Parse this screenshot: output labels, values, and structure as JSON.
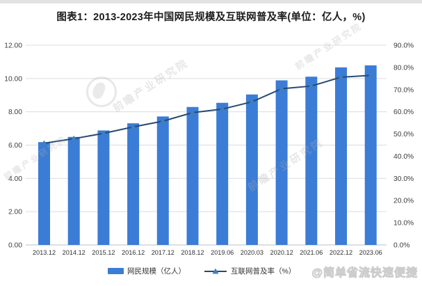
{
  "title": "图表1：2013-2023年中国网民规模及互联网普及率(单位：亿人，%)",
  "chart_data": {
    "type": "bar",
    "subtype": "combo-bar-line-dual-axis",
    "title": "图表1：2013-2023年中国网民规模及互联网普及率(单位：亿人，%)",
    "categories": [
      "2013.12",
      "2014.12",
      "2015.12",
      "2016.12",
      "2017.12",
      "2018.12",
      "2019.06",
      "2020.03",
      "2020.12",
      "2021.06",
      "2022.12",
      "2023.06"
    ],
    "series": [
      {
        "name": "网民规模（亿人）",
        "type": "bar",
        "axis": "left",
        "color": "#3B7CD6",
        "values": [
          6.18,
          6.49,
          6.88,
          7.31,
          7.72,
          8.29,
          8.54,
          9.04,
          9.89,
          10.11,
          10.67,
          10.79
        ]
      },
      {
        "name": "互联网普及率（%）",
        "type": "line",
        "axis": "right",
        "color": "#254A73",
        "marker": "triangle",
        "marker_color": "#3E7FC1",
        "values": [
          45.8,
          47.9,
          50.3,
          53.2,
          55.8,
          59.6,
          61.2,
          64.5,
          70.4,
          71.6,
          75.6,
          76.4
        ]
      }
    ],
    "left_axis": {
      "min": 0,
      "max": 12,
      "step": 2,
      "tick_labels": [
        "0.00",
        "2.00",
        "4.00",
        "6.00",
        "8.00",
        "10.00",
        "12.00"
      ]
    },
    "right_axis": {
      "min": 0,
      "max": 90,
      "step": 10,
      "tick_labels": [
        "0.0%",
        "10.0%",
        "20.0%",
        "30.0%",
        "40.0%",
        "50.0%",
        "60.0%",
        "70.0%",
        "80.0%",
        "90.0%"
      ]
    },
    "grid": true,
    "legend_position": "bottom",
    "colors": {
      "grid": "#dcdcdc",
      "axis_line": "#bfbfbf",
      "tick_text": "#3d3d3d"
    }
  },
  "watermarks": {
    "diagonal_text": "前瞻产业研究院",
    "bottom_right": "@简单省流快速便捷"
  }
}
